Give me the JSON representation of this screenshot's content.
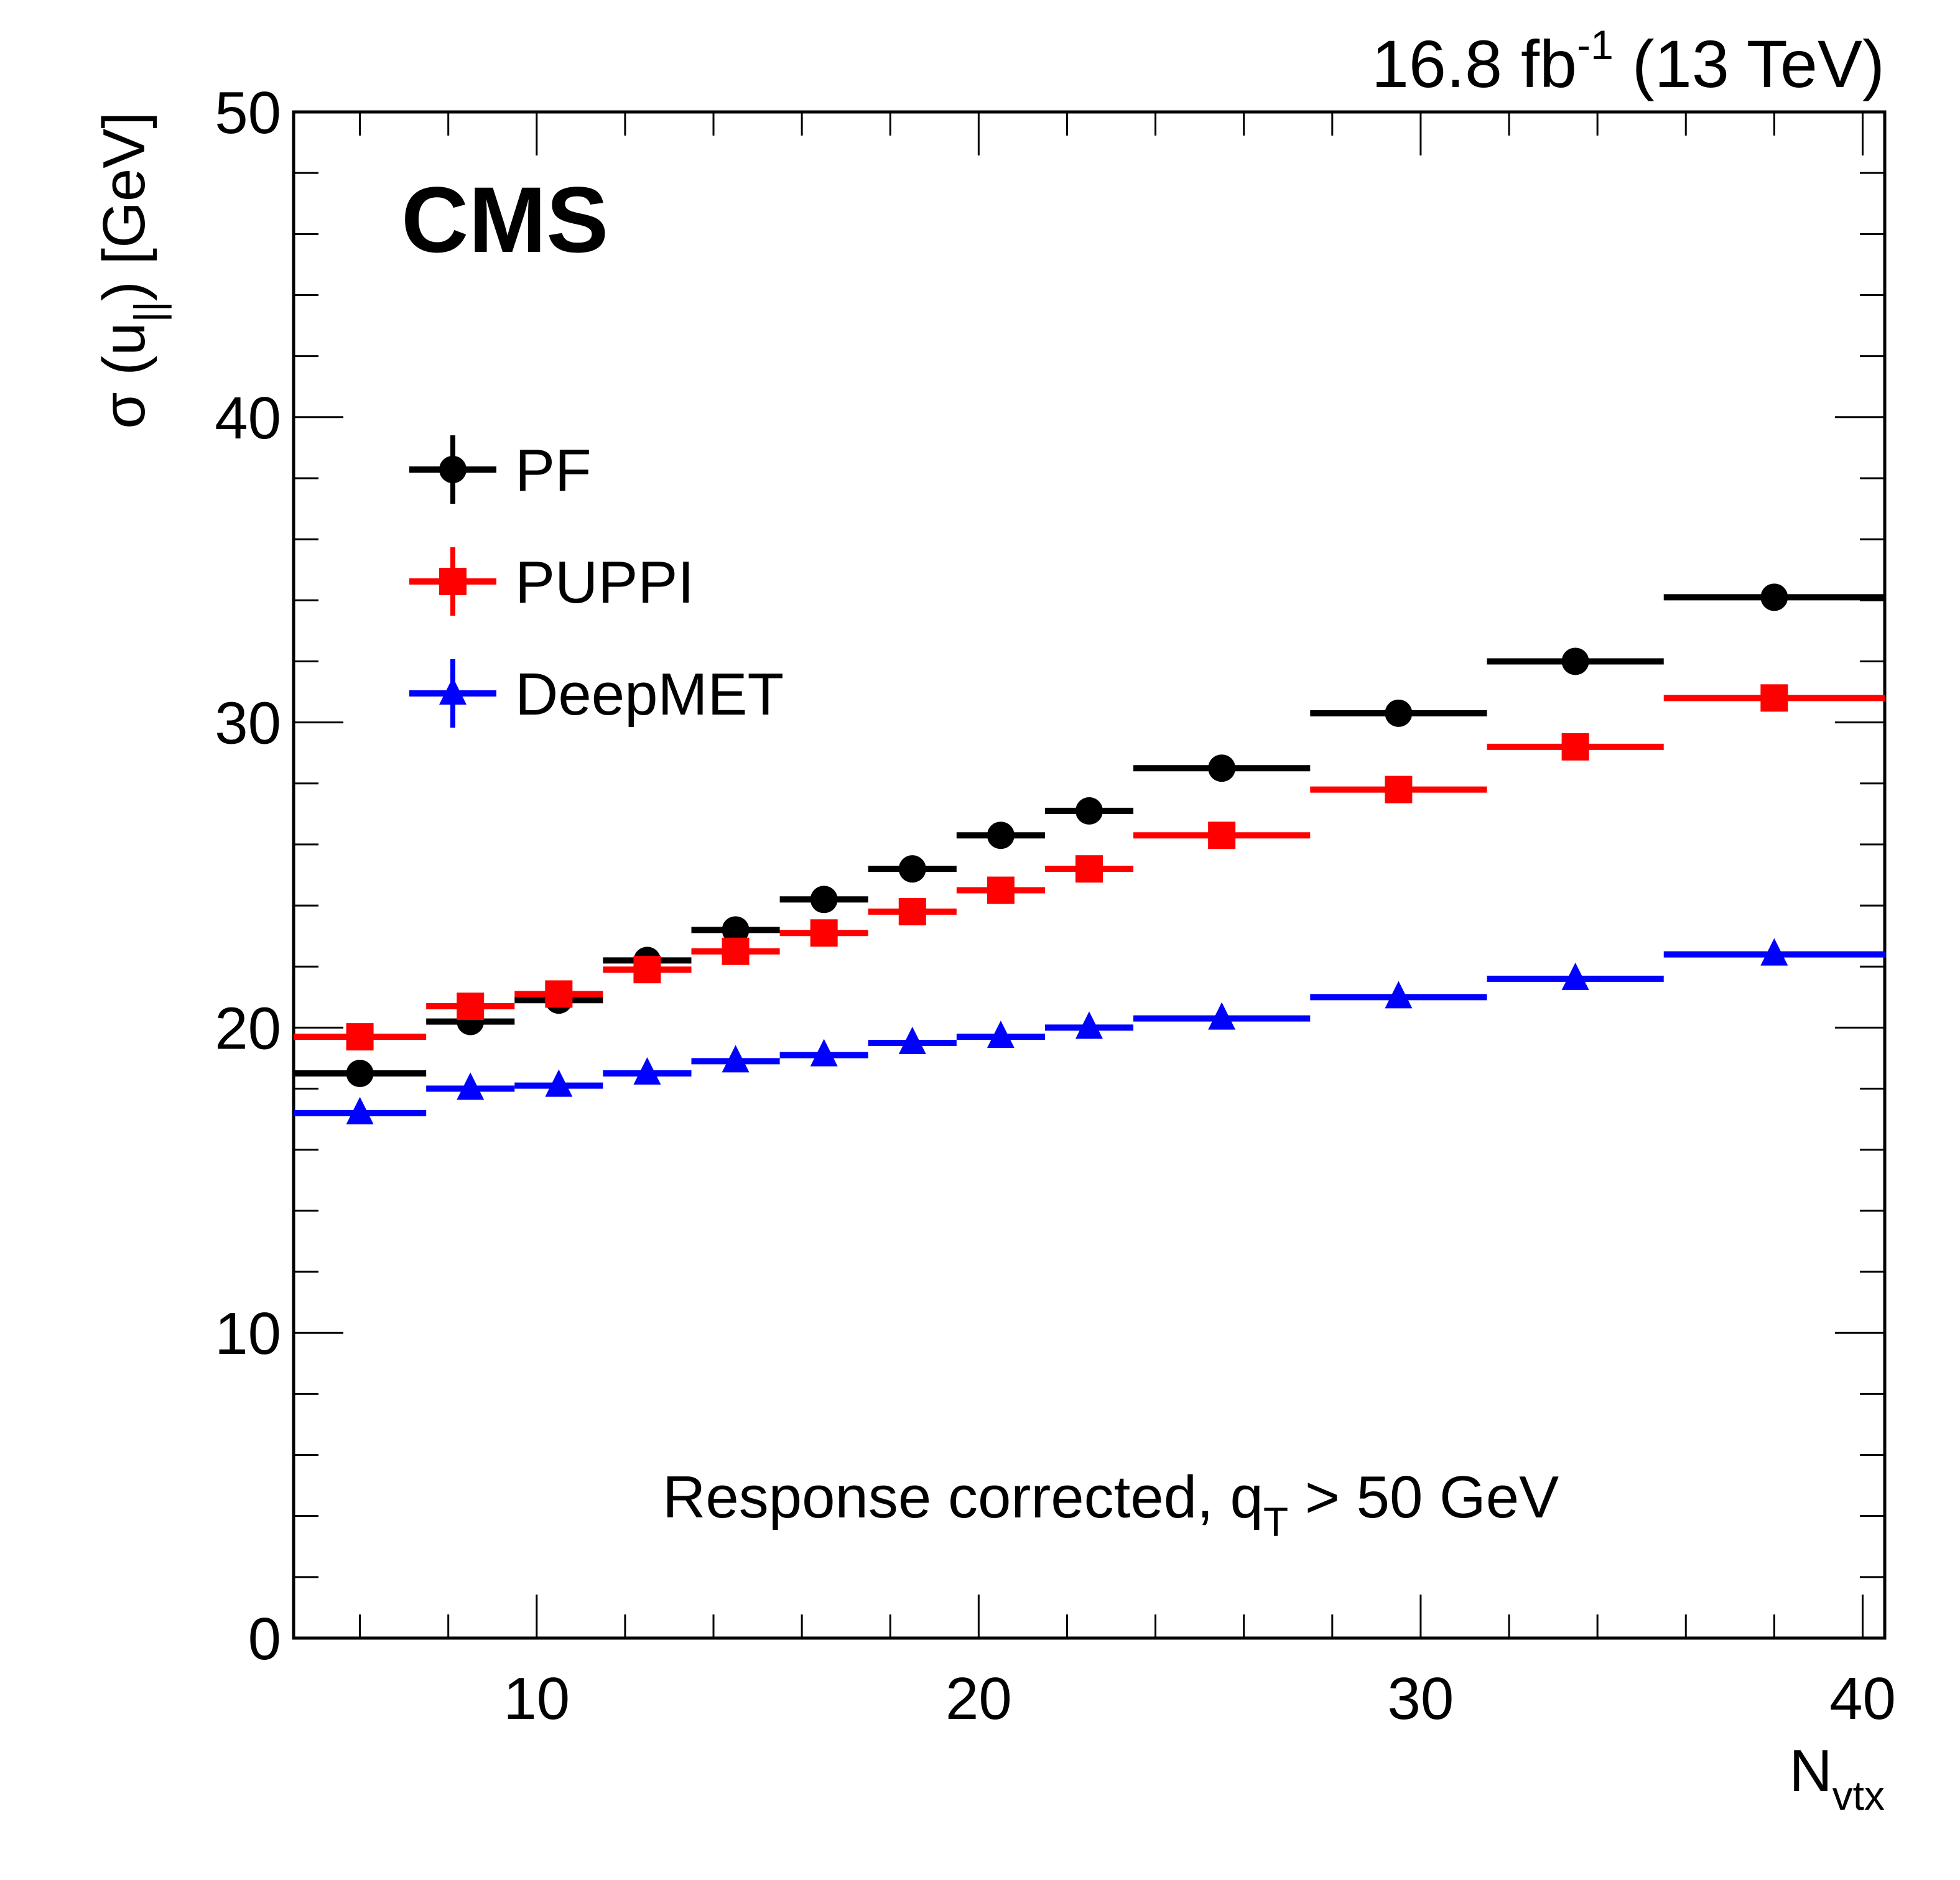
{
  "chart_data": {
    "type": "scatter",
    "title": "",
    "experiment_label": "CMS",
    "lumi_label": {
      "value": "16.8 fb",
      "superscript": "-1",
      "suffix": " (13 TeV)"
    },
    "xlabel": {
      "main": "N",
      "sub": "vtx"
    },
    "ylabel": {
      "prefix": "σ (u",
      "sub": "||",
      "suffix": ") [GeV]"
    },
    "annotation": {
      "prefix": "Response corrected, q",
      "sub": "T",
      "suffix": " > 50 GeV"
    },
    "xlim": [
      4.5,
      40.5
    ],
    "ylim": [
      0,
      50
    ],
    "xticks": [
      10,
      20,
      30,
      40
    ],
    "yticks": [
      0,
      10,
      20,
      30,
      40,
      50
    ],
    "grid": false,
    "legend_position": "top-left",
    "bin_edges": [
      4.5,
      7.5,
      9.5,
      11.5,
      13.5,
      15.5,
      17.5,
      19.5,
      21.5,
      23.5,
      27.5,
      31.5,
      35.5,
      40.5
    ],
    "x_centers": [
      6,
      8.5,
      10.5,
      12.5,
      14.5,
      16.5,
      18.5,
      20.5,
      22.5,
      25.5,
      29.5,
      33.5,
      38
    ],
    "series": [
      {
        "name": "PF",
        "color": "#000000",
        "marker": "circle",
        "values": [
          18.5,
          20.2,
          20.9,
          22.2,
          23.2,
          24.2,
          25.2,
          26.3,
          27.1,
          28.5,
          30.3,
          32.0,
          34.1
        ]
      },
      {
        "name": "PUPPI",
        "color": "#ff0000",
        "marker": "square",
        "values": [
          19.7,
          20.7,
          21.1,
          21.9,
          22.5,
          23.1,
          23.8,
          24.5,
          25.2,
          26.3,
          27.8,
          29.2,
          30.8
        ]
      },
      {
        "name": "DeepMET",
        "color": "#0000ff",
        "marker": "triangle",
        "values": [
          17.2,
          18.0,
          18.1,
          18.5,
          18.9,
          19.1,
          19.5,
          19.7,
          20.0,
          20.3,
          21.0,
          21.6,
          22.4
        ]
      }
    ]
  }
}
